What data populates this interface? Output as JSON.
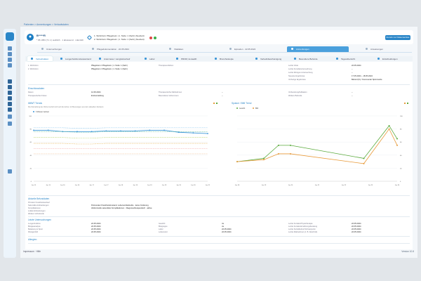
{
  "breadcrumb": "Patienten > Anmerkungen > Verlaufsdaten",
  "sidebar": {
    "items": [
      "logo-icon",
      "home-icon",
      "list-icon",
      "patient-icon",
      "link-icon",
      "cart-icon",
      "book-icon",
      "chart-icon",
      "clipboard-icon",
      "pill-icon",
      "calendar-icon",
      "settings-icon",
      "people-icon",
      "info-icon"
    ]
  },
  "patient": {
    "name": "B*****R",
    "info": "* 05.1953 (71 J.) weiblich · 1 abwesend · männlich",
    "status1": "1. Wohnform   Pflegeheim  | 1. Stufe: 1 (Sehr) (Neubett)",
    "status2": "2. Wohnform   Pflegeheim  | 1. Stufe: 1 (Sehr) (Neubett)",
    "button": "Zurück zur Patientenliste"
  },
  "tabs1": [
    "Untersuchungen",
    "Pflegedokumentation · 22.05.2024",
    "Vitaldaten",
    "Episoden · 22.05.2024",
    "Anmerkungen",
    "Anweisungen"
  ],
  "tabs2": [
    "Verlaufsdaten",
    "Lungenfunktion/auswertend",
    "Anamnese / Langzeitverlauf",
    "Labor",
    "PROM, E-Health",
    "Bronchoskopie",
    "Verlaufsbescheinigung",
    "Besondere Befunde",
    "Tagesübersicht",
    "Entscheidungen",
    "Lebensqualität"
  ],
  "summary": {
    "r1l": "1. Wohnform",
    "r1v": "Pflegeheim / Pflegeheim | 1. Stufe: 1 (Sehr)",
    "r2l": "2. Wohnform",
    "r2v": "Pflegeheim / Pflegeheim | 1. Stufe: 1 (Sehr)",
    "midl": "Therapieverfahren",
    "c3l1": "Letzte Visite",
    "c3v1": "22.05.2024",
    "c3l2": "Letzte Konsiliaruntersuchung",
    "c3v2": "–",
    "c3l3": "Letzte Röntgen-Untersuchung",
    "c3v3": "–",
    "c3l4": "Neueste Ergebnisse",
    "c3v4": "17.05.2024 – 18.05.2024",
    "c3l5": "Vorherige Ergebnisse",
    "c3v5": "Befund (K) / Kommentar Spirometrie"
  },
  "einschluss": {
    "title": "Einschlussdaten",
    "l1": "Datum",
    "v1": "12.06.2024",
    "l2": "Therapeutischer Fokus",
    "v2": "Erstvorstellung",
    "l3": "Therapeutische Maßnahmen",
    "v3": "–",
    "l4": "Besonderes Vorkommen",
    "v4": "–",
    "l5": "Vorbereitung/Indikation",
    "v5": "–",
    "l6": "Weitere Befunde",
    "v6": "–"
  },
  "left_chart": {
    "title": "6MWT Trends",
    "note": "Die Darstellung der Werte bezieht sich auf die letzten 12 Messungen aus dem aktuellen Zeitraum",
    "legend": "6 Minuten Gehtest"
  },
  "right_chart": {
    "title": "Sputum / BMI Trend",
    "legend_a": "Gewicht",
    "legend_b": "BMI"
  },
  "chart_data": [
    {
      "type": "line",
      "title": "6MWT Trends",
      "xlabel": "",
      "ylabel": "",
      "x": [
        "Jan 15",
        "Jun 15",
        "Jan 16",
        "Jun 16",
        "Jan 17",
        "Jun 17",
        "Jan 18",
        "Jun 18",
        "Jan 19",
        "Jun 19",
        "Jan 20",
        "Jun 20",
        "Jan 21"
      ],
      "ylim": [
        0,
        100
      ],
      "series": [
        {
          "name": "6 Minuten Gehtest",
          "color": "#3a96d8",
          "values": [
            78,
            78,
            76,
            76,
            76,
            77,
            77,
            77,
            78,
            78,
            75,
            74,
            73
          ]
        },
        {
          "color": "#8ec9f0",
          "values": [
            82,
            82,
            82,
            81,
            81,
            82,
            82,
            82,
            82,
            82,
            82,
            82,
            82
          ]
        },
        {
          "color": "#6cc0a4",
          "values": [
            76,
            76,
            76,
            75,
            75,
            76,
            76,
            76,
            76,
            76,
            76,
            76,
            76
          ]
        },
        {
          "color": "#b7d46a",
          "values": [
            67,
            67,
            67,
            66,
            66,
            67,
            67,
            67,
            67,
            67,
            67,
            67,
            67
          ]
        },
        {
          "color": "#e6b65c",
          "values": [
            58,
            58,
            58,
            57,
            57,
            58,
            58,
            58,
            58,
            58,
            58,
            58,
            58
          ]
        },
        {
          "color": "#f2a4a4",
          "values": [
            50,
            50,
            50,
            50,
            50,
            50,
            50,
            50,
            50,
            50,
            50,
            50,
            50
          ]
        },
        {
          "color": "#f3c8a0",
          "values": [
            42,
            42,
            42,
            42,
            42,
            42,
            42,
            42,
            42,
            42,
            42,
            42,
            42
          ]
        }
      ]
    },
    {
      "type": "line",
      "title": "Sputum / BMI Trend",
      "xlabel": "",
      "ylabel": "",
      "x": [
        "Jan 18",
        "Jan 19",
        "Jan 20",
        "Jan 21",
        "Jan 22",
        "Jan 23",
        "Jan 24"
      ],
      "xnum": [
        0,
        1,
        1.55,
        2,
        4.75,
        5.7,
        6
      ],
      "ylim": [
        0,
        100
      ],
      "series": [
        {
          "name": "Gewicht",
          "color": "#5aaa3c",
          "values": [
            30,
            35,
            55,
            55,
            35,
            85,
            65
          ]
        },
        {
          "name": "BMI",
          "color": "#e89a3a",
          "values": [
            30,
            33,
            42,
            42,
            27,
            80,
            55
          ]
        }
      ]
    }
  ],
  "last_befunde": {
    "title": "Aktuelle Befunddaten",
    "l1": "Primärer Krankheitsverlauf",
    "l2": "Sekundäre Erkrankungen",
    "v2": "Pulmonaler Krankheitszustand, Lebensmittelstudie · keine Änderung",
    "l3": "Komplikationen",
    "v3": "Abdominelle sekundäre Komplikationen · Diagnosetherapeutisch · aktive",
    "l4": "Lokale Erkrankungen",
    "l5": "Weitere Vorbefunde"
  },
  "last_unters": {
    "title": "Letzte Untersuchungen",
    "rows": [
      [
        "Lungenfunktion",
        "22.05.2024",
        "Gewicht",
        "Ja",
        "Letzte Kontakt-Physiotherapie",
        "22.05.2024"
      ],
      [
        "Blutgasanalyse",
        "22.05.2024",
        "Blutgruppe",
        "Ja",
        "Letzte Kontakt-Ernährungsberatung",
        "22.05.2024"
      ],
      [
        "Belastung & Sport",
        "22.05.2024",
        "Labor",
        "22.05.2024",
        "Letzte Sozialbefund Schwerpunkt",
        "22.05.2024"
      ],
      [
        "Röntgenbild",
        "22.05.2024",
        "Lebenszeit",
        "22.05.2024",
        "Letzte Maßnahmen (z. B. Abschnitt)",
        "22.05.2024"
      ]
    ]
  },
  "allergies": "Allergien",
  "footer": {
    "left": "Impressum   ·   Hilfe",
    "right": "Version 10.8"
  },
  "tick_left": [
    "100",
    "80",
    "60",
    "40",
    "20",
    "0"
  ],
  "tick_right": [
    "100",
    "80",
    "60",
    "40",
    "20",
    "0"
  ]
}
